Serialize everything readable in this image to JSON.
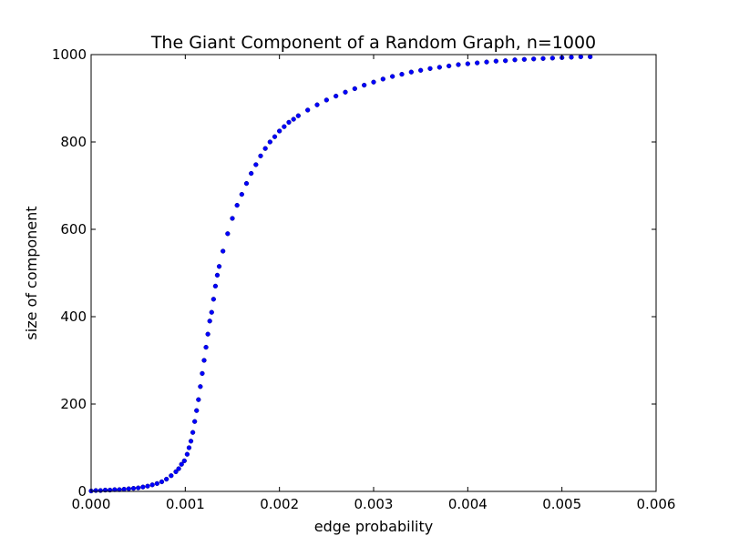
{
  "chart_data": {
    "type": "scatter",
    "title": "The Giant Component of a Random Graph, n=1000",
    "xlabel": "edge probability",
    "ylabel": "size of component",
    "xlim": [
      0,
      0.006
    ],
    "ylim": [
      0,
      1000
    ],
    "x_ticks": [
      "0.000",
      "0.001",
      "0.002",
      "0.003",
      "0.004",
      "0.005",
      "0.006"
    ],
    "y_ticks": [
      "0",
      "200",
      "400",
      "600",
      "800",
      "1000"
    ],
    "grid": false,
    "legend": "none",
    "marker_color": "#0000ff",
    "series": [
      {
        "points": [
          [
            0.0,
            1
          ],
          [
            5e-05,
            2
          ],
          [
            0.0001,
            2
          ],
          [
            0.00015,
            3
          ],
          [
            0.0002,
            3
          ],
          [
            0.00025,
            4
          ],
          [
            0.0003,
            4
          ],
          [
            0.00035,
            5
          ],
          [
            0.0004,
            6
          ],
          [
            0.00045,
            7
          ],
          [
            0.0005,
            8
          ],
          [
            0.00055,
            10
          ],
          [
            0.0006,
            12
          ],
          [
            0.00065,
            15
          ],
          [
            0.0007,
            18
          ],
          [
            0.00075,
            22
          ],
          [
            0.0008,
            28
          ],
          [
            0.00085,
            36
          ],
          [
            0.0009,
            45
          ],
          [
            0.00093,
            52
          ],
          [
            0.00096,
            62
          ],
          [
            0.00099,
            70
          ],
          [
            0.00102,
            85
          ],
          [
            0.00104,
            100
          ],
          [
            0.00106,
            115
          ],
          [
            0.00108,
            135
          ],
          [
            0.0011,
            160
          ],
          [
            0.00112,
            185
          ],
          [
            0.00114,
            210
          ],
          [
            0.00116,
            240
          ],
          [
            0.00118,
            270
          ],
          [
            0.0012,
            300
          ],
          [
            0.00122,
            330
          ],
          [
            0.00124,
            360
          ],
          [
            0.00126,
            390
          ],
          [
            0.00128,
            410
          ],
          [
            0.0013,
            440
          ],
          [
            0.00132,
            470
          ],
          [
            0.00134,
            495
          ],
          [
            0.00136,
            515
          ],
          [
            0.0014,
            550
          ],
          [
            0.00145,
            590
          ],
          [
            0.0015,
            625
          ],
          [
            0.00155,
            655
          ],
          [
            0.0016,
            680
          ],
          [
            0.00165,
            705
          ],
          [
            0.0017,
            728
          ],
          [
            0.00175,
            748
          ],
          [
            0.0018,
            768
          ],
          [
            0.00185,
            785
          ],
          [
            0.0019,
            800
          ],
          [
            0.00195,
            812
          ],
          [
            0.002,
            825
          ],
          [
            0.00205,
            835
          ],
          [
            0.0021,
            845
          ],
          [
            0.00215,
            852
          ],
          [
            0.0022,
            860
          ],
          [
            0.0023,
            873
          ],
          [
            0.0024,
            885
          ],
          [
            0.0025,
            896
          ],
          [
            0.0026,
            905
          ],
          [
            0.0027,
            914
          ],
          [
            0.0028,
            922
          ],
          [
            0.0029,
            930
          ],
          [
            0.003,
            937
          ],
          [
            0.0031,
            944
          ],
          [
            0.0032,
            950
          ],
          [
            0.0033,
            955
          ],
          [
            0.0034,
            960
          ],
          [
            0.0035,
            964
          ],
          [
            0.0036,
            968
          ],
          [
            0.0037,
            971
          ],
          [
            0.0038,
            974
          ],
          [
            0.0039,
            977
          ],
          [
            0.004,
            979
          ],
          [
            0.0041,
            981
          ],
          [
            0.0042,
            983
          ],
          [
            0.0043,
            985
          ],
          [
            0.0044,
            986
          ],
          [
            0.0045,
            988
          ],
          [
            0.0046,
            989
          ],
          [
            0.0047,
            990
          ],
          [
            0.0048,
            991
          ],
          [
            0.0049,
            992
          ],
          [
            0.005,
            993
          ],
          [
            0.0051,
            994
          ],
          [
            0.0052,
            995
          ],
          [
            0.0053,
            995
          ]
        ]
      }
    ]
  }
}
